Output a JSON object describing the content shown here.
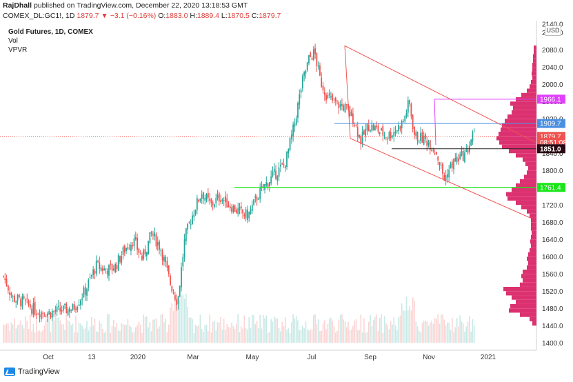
{
  "header": {
    "publisher": "RajDhall",
    "published_text": "published on TradingView.com, December 22, 2020 13:18:53 GMT",
    "symbol": "COMEX_DL:GC1!, 1D",
    "last": "1879.7",
    "change": "−3.1 (−0.16%)",
    "o_label": "O:",
    "o_val": "1883.0",
    "h_label": "H:",
    "h_val": "1889.4",
    "l_label": "L:",
    "l_val": "1870.5",
    "c_label": "C:",
    "c_val": "1879.7"
  },
  "legend": {
    "title": "Gold Futures, 1D, COMEX",
    "vol": "Vol",
    "vpvr": "VPVR"
  },
  "currency": "USD",
  "footer": {
    "brand": "TradingView"
  },
  "colors": {
    "up": "#26a69a",
    "down": "#ef5350",
    "vpvr": "#d81b60",
    "magenta": "#e040fb",
    "blue": "#4a90e2",
    "green": "#19e619",
    "channel": "#ef5350"
  },
  "chart_data": {
    "type": "candlestick",
    "y_ticks": [
      1400,
      1440,
      1480,
      1520,
      1560,
      1600,
      1640,
      1680,
      1720,
      1760,
      1800,
      1840,
      1880,
      1920,
      1960,
      2000,
      2040,
      2080,
      2120,
      2140
    ],
    "ylim": [
      1400,
      2145
    ],
    "x_ticks": [
      "Oct",
      "13",
      "2020",
      "Mar",
      "May",
      "Jul",
      "Sep",
      "Nov",
      "2021"
    ],
    "price_labels": [
      {
        "value": 1966.1,
        "text": "1966.1",
        "color": "#e040fb"
      },
      {
        "value": 1909.7,
        "text": "1909.7",
        "color": "#4a90e2"
      },
      {
        "value": 1879.7,
        "text": "1879.7",
        "color": "#ef5350"
      },
      {
        "value": 1866.0,
        "text": "08:51:08",
        "color": "#ef5350"
      },
      {
        "value": 1851.0,
        "text": "1851.0",
        "color": "#2b0a14"
      },
      {
        "value": 1761.4,
        "text": "1761.4",
        "color": "#19e619"
      }
    ],
    "horizontal_levels": [
      {
        "value": 1966.1,
        "color": "#e040fb"
      },
      {
        "value": 1909.7,
        "color": "#4a90e2"
      },
      {
        "value": 1851.0,
        "color": "#2b0a14"
      },
      {
        "value": 1761.4,
        "color": "#19e619"
      },
      {
        "value": 1879.7,
        "color": "#ef5350"
      }
    ],
    "trend_points": [
      [
        0,
        1555
      ],
      [
        10,
        1505
      ],
      [
        22,
        1495
      ],
      [
        35,
        1475
      ],
      [
        48,
        1470
      ],
      [
        60,
        1475
      ],
      [
        75,
        1480
      ],
      [
        88,
        1520
      ],
      [
        100,
        1580
      ],
      [
        110,
        1570
      ],
      [
        120,
        1575
      ],
      [
        130,
        1615
      ],
      [
        140,
        1640
      ],
      [
        150,
        1595
      ],
      [
        160,
        1655
      ],
      [
        170,
        1620
      ],
      [
        180,
        1540
      ],
      [
        188,
        1495
      ],
      [
        196,
        1645
      ],
      [
        206,
        1710
      ],
      [
        214,
        1750
      ],
      [
        224,
        1720
      ],
      [
        234,
        1740
      ],
      [
        244,
        1720
      ],
      [
        254,
        1705
      ],
      [
        264,
        1695
      ],
      [
        274,
        1740
      ],
      [
        284,
        1770
      ],
      [
        294,
        1795
      ],
      [
        304,
        1815
      ],
      [
        314,
        1905
      ],
      [
        322,
        2000
      ],
      [
        330,
        2060
      ],
      [
        336,
        2075
      ],
      [
        342,
        2010
      ],
      [
        350,
        1970
      ],
      [
        360,
        1955
      ],
      [
        370,
        1945
      ],
      [
        378,
        1920
      ],
      [
        386,
        1870
      ],
      [
        394,
        1905
      ],
      [
        404,
        1895
      ],
      [
        414,
        1880
      ],
      [
        424,
        1895
      ],
      [
        432,
        1915
      ],
      [
        438,
        1960
      ],
      [
        444,
        1880
      ],
      [
        452,
        1875
      ],
      [
        460,
        1865
      ],
      [
        468,
        1840
      ],
      [
        476,
        1780
      ],
      [
        484,
        1815
      ],
      [
        492,
        1830
      ],
      [
        500,
        1840
      ],
      [
        506,
        1880
      ],
      [
        510,
        1880
      ]
    ],
    "volume_profile": [
      [
        2085,
        4
      ],
      [
        2075,
        4
      ],
      [
        2065,
        5
      ],
      [
        2055,
        5
      ],
      [
        2045,
        6
      ],
      [
        2035,
        6
      ],
      [
        2025,
        7
      ],
      [
        2015,
        6
      ],
      [
        2005,
        8
      ],
      [
        1995,
        10
      ],
      [
        1985,
        14
      ],
      [
        1975,
        22
      ],
      [
        1965,
        30
      ],
      [
        1955,
        38
      ],
      [
        1945,
        34
      ],
      [
        1935,
        36
      ],
      [
        1925,
        42
      ],
      [
        1915,
        46
      ],
      [
        1905,
        50
      ],
      [
        1895,
        52
      ],
      [
        1885,
        55
      ],
      [
        1875,
        58
      ],
      [
        1865,
        54
      ],
      [
        1855,
        50
      ],
      [
        1845,
        40
      ],
      [
        1835,
        30
      ],
      [
        1825,
        20
      ],
      [
        1815,
        16
      ],
      [
        1805,
        12
      ],
      [
        1795,
        14
      ],
      [
        1785,
        18
      ],
      [
        1775,
        24
      ],
      [
        1765,
        30
      ],
      [
        1755,
        36
      ],
      [
        1745,
        44
      ],
      [
        1735,
        42
      ],
      [
        1725,
        30
      ],
      [
        1715,
        22
      ],
      [
        1705,
        14
      ],
      [
        1695,
        10
      ],
      [
        1685,
        8
      ],
      [
        1675,
        8
      ],
      [
        1665,
        8
      ],
      [
        1655,
        7
      ],
      [
        1645,
        8
      ],
      [
        1635,
        9
      ],
      [
        1625,
        8
      ],
      [
        1615,
        10
      ],
      [
        1605,
        12
      ],
      [
        1595,
        14
      ],
      [
        1585,
        12
      ],
      [
        1575,
        14
      ],
      [
        1565,
        20
      ],
      [
        1555,
        22
      ],
      [
        1545,
        20
      ],
      [
        1535,
        24
      ],
      [
        1525,
        48
      ],
      [
        1515,
        44
      ],
      [
        1505,
        36
      ],
      [
        1495,
        30
      ],
      [
        1485,
        38
      ],
      [
        1475,
        40
      ],
      [
        1465,
        24
      ],
      [
        1455,
        10
      ],
      [
        1445,
        6
      ]
    ]
  }
}
